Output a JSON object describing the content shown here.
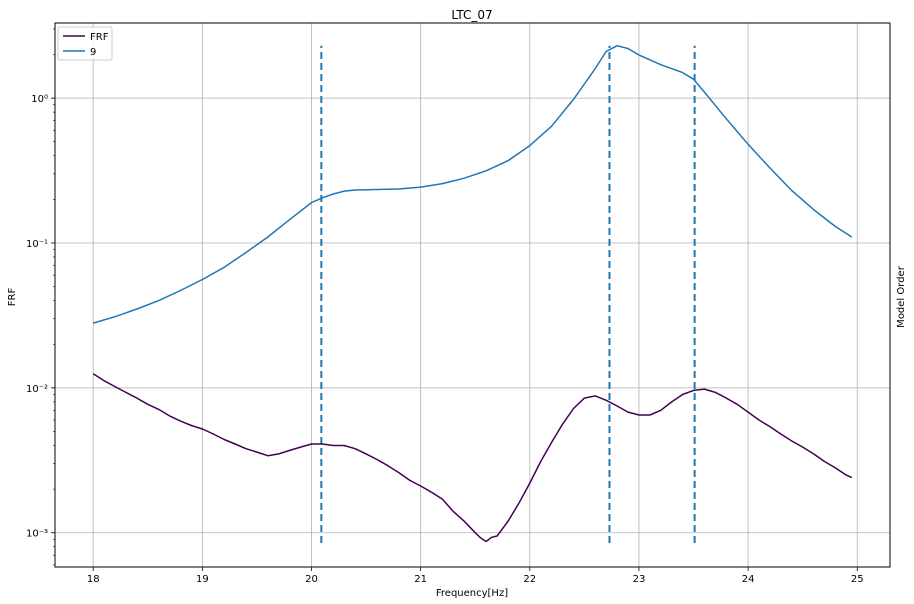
{
  "chart_data": {
    "type": "line",
    "title": "LTC_07",
    "xlabel": "Frequency[Hz]",
    "ylabel": "FRF",
    "ylabel_right": "Model Order",
    "xlim": [
      17.65,
      25.3
    ],
    "ylim": [
      0.00058,
      3.3
    ],
    "yscale": "log",
    "grid": true,
    "legend_placement": "top-left",
    "xticks": [
      18,
      19,
      20,
      21,
      22,
      23,
      24,
      25
    ],
    "xtick_labels": [
      "18",
      "19",
      "20",
      "21",
      "22",
      "23",
      "24",
      "25"
    ],
    "yticks": [
      0.001,
      0.01,
      0.1,
      1
    ],
    "ytick_labels": [
      "10⁻³",
      "10⁻²",
      "10⁻¹",
      "10⁰"
    ],
    "series": [
      {
        "name": "FRF",
        "color": "#440154",
        "x": [
          18.0,
          18.1,
          18.2,
          18.3,
          18.4,
          18.5,
          18.6,
          18.7,
          18.8,
          18.9,
          19.0,
          19.1,
          19.2,
          19.3,
          19.4,
          19.5,
          19.6,
          19.7,
          19.8,
          19.9,
          20.0,
          20.1,
          20.2,
          20.3,
          20.4,
          20.5,
          20.6,
          20.7,
          20.8,
          20.9,
          21.0,
          21.1,
          21.2,
          21.3,
          21.4,
          21.5,
          21.55,
          21.6,
          21.65,
          21.7,
          21.8,
          21.9,
          22.0,
          22.1,
          22.2,
          22.3,
          22.4,
          22.5,
          22.6,
          22.7,
          22.8,
          22.9,
          23.0,
          23.1,
          23.2,
          23.3,
          23.4,
          23.5,
          23.6,
          23.7,
          23.8,
          23.9,
          24.0,
          24.1,
          24.2,
          24.3,
          24.4,
          24.5,
          24.6,
          24.7,
          24.8,
          24.9,
          24.95
        ],
        "y": [
          0.0125,
          0.0112,
          0.0102,
          0.0093,
          0.0085,
          0.0077,
          0.0071,
          0.0064,
          0.0059,
          0.0055,
          0.0052,
          0.0048,
          0.0044,
          0.0041,
          0.0038,
          0.0036,
          0.0034,
          0.0035,
          0.0037,
          0.0039,
          0.0041,
          0.0041,
          0.004,
          0.004,
          0.0038,
          0.0035,
          0.0032,
          0.0029,
          0.0026,
          0.0023,
          0.0021,
          0.0019,
          0.0017,
          0.0014,
          0.0012,
          0.001,
          0.00092,
          0.00087,
          0.00093,
          0.00095,
          0.0012,
          0.0016,
          0.0022,
          0.0031,
          0.0042,
          0.0056,
          0.0072,
          0.0085,
          0.0088,
          0.0082,
          0.0075,
          0.0068,
          0.0065,
          0.0065,
          0.007,
          0.008,
          0.009,
          0.0096,
          0.0098,
          0.0093,
          0.0085,
          0.0077,
          0.0068,
          0.006,
          0.0054,
          0.0048,
          0.0043,
          0.0039,
          0.0035,
          0.0031,
          0.0028,
          0.0025,
          0.0024
        ]
      },
      {
        "name": "9",
        "color": "#1f77b4",
        "x": [
          18.0,
          18.2,
          18.4,
          18.6,
          18.8,
          19.0,
          19.2,
          19.4,
          19.6,
          19.8,
          20.0,
          20.1,
          20.2,
          20.3,
          20.4,
          20.6,
          20.8,
          21.0,
          21.2,
          21.4,
          21.6,
          21.8,
          22.0,
          22.2,
          22.4,
          22.6,
          22.7,
          22.8,
          22.9,
          23.0,
          23.2,
          23.4,
          23.5,
          23.6,
          23.8,
          24.0,
          24.2,
          24.4,
          24.6,
          24.8,
          24.95
        ],
        "y": [
          0.028,
          0.031,
          0.035,
          0.04,
          0.047,
          0.056,
          0.068,
          0.086,
          0.11,
          0.145,
          0.19,
          0.205,
          0.218,
          0.228,
          0.232,
          0.234,
          0.236,
          0.243,
          0.257,
          0.28,
          0.315,
          0.37,
          0.47,
          0.64,
          0.98,
          1.6,
          2.1,
          2.3,
          2.2,
          1.98,
          1.7,
          1.5,
          1.35,
          1.1,
          0.72,
          0.48,
          0.33,
          0.23,
          0.17,
          0.13,
          0.11
        ]
      }
    ],
    "vlines": {
      "color": "#1f77b4",
      "style": "dashed",
      "x": [
        20.09,
        22.73,
        23.51
      ],
      "y_range": [
        0.00085,
        2.3
      ]
    }
  }
}
